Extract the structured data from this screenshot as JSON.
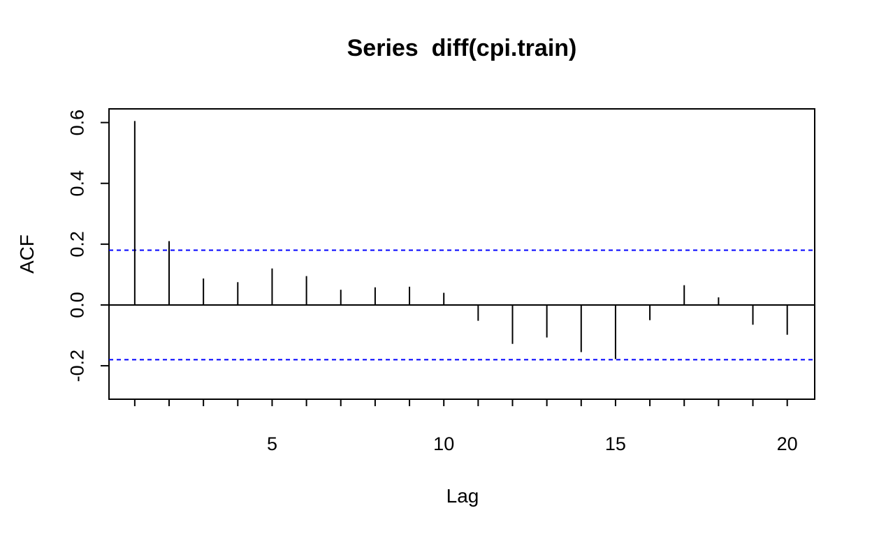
{
  "chart_data": {
    "type": "bar",
    "title": "Series  diff(cpi.train)",
    "xlabel": "Lag",
    "ylabel": "ACF",
    "xlim": [
      0.25,
      20.8
    ],
    "ylim": [
      -0.31,
      0.645
    ],
    "x_ticks": [
      5,
      10,
      15,
      20
    ],
    "x_tick_labels": [
      "5",
      "10",
      "15",
      "20"
    ],
    "x_minor_ticks": [
      1,
      2,
      3,
      4,
      5,
      6,
      7,
      8,
      9,
      10,
      11,
      12,
      13,
      14,
      15,
      16,
      17,
      18,
      19,
      20
    ],
    "y_ticks": [
      -0.2,
      0.0,
      0.2,
      0.4,
      0.6
    ],
    "y_tick_labels": [
      "-0.2",
      "0.0",
      "0.2",
      "0.4",
      "0.6"
    ],
    "lags": [
      1,
      2,
      3,
      4,
      5,
      6,
      7,
      8,
      9,
      10,
      11,
      12,
      13,
      14,
      15,
      16,
      17,
      18,
      19,
      20
    ],
    "values": [
      0.605,
      0.21,
      0.087,
      0.075,
      0.12,
      0.095,
      0.05,
      0.058,
      0.06,
      0.04,
      -0.052,
      -0.128,
      -0.107,
      -0.155,
      -0.178,
      -0.05,
      0.065,
      0.025,
      -0.065,
      -0.098
    ],
    "confidence_band": 0.18,
    "zero_line": 0,
    "grid": false,
    "legend": "none",
    "colors": {
      "bars": "#000000",
      "confidence_lines": "#0000ff",
      "frame": "#000000"
    }
  }
}
